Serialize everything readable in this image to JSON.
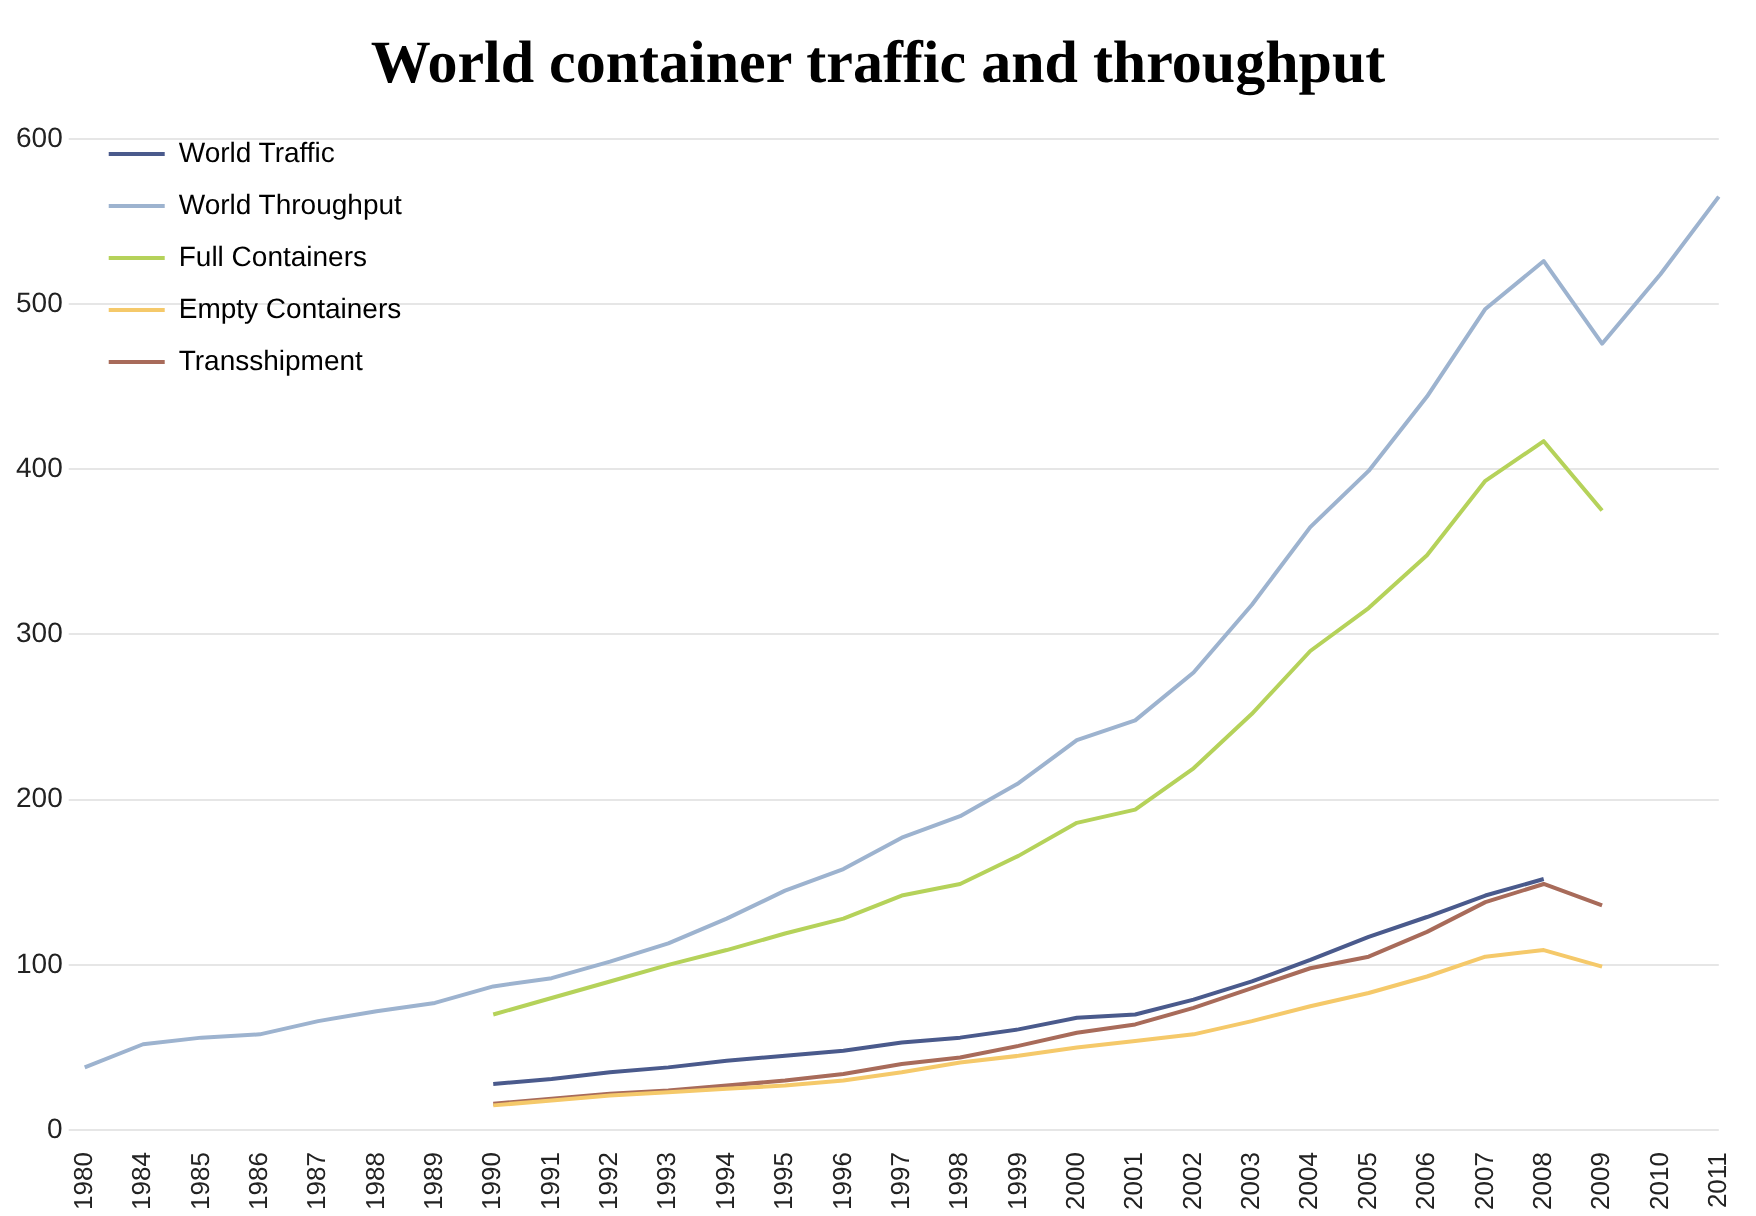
{
  "chart_data": {
    "type": "line",
    "title": "World container traffic and throughput",
    "categories": [
      "1980",
      "1984",
      "1985",
      "1986",
      "1987",
      "1988",
      "1989",
      "1990",
      "1991",
      "1992",
      "1993",
      "1994",
      "1995",
      "1996",
      "1997",
      "1998",
      "1999",
      "2000",
      "2001",
      "2002",
      "2003",
      "2004",
      "2005",
      "2006",
      "2007",
      "2008",
      "2009",
      "2010",
      "2011"
    ],
    "series": [
      {
        "name": "World Traffic",
        "color": "#4a5a8c",
        "values": [
          null,
          null,
          null,
          null,
          null,
          null,
          null,
          28,
          31,
          35,
          38,
          42,
          45,
          48,
          53,
          56,
          61,
          68,
          70,
          79,
          90,
          103,
          117,
          129,
          142,
          152,
          null,
          null,
          null
        ]
      },
      {
        "name": "World Throughput",
        "color": "#9db3cf",
        "values": [
          38,
          52,
          56,
          58,
          66,
          72,
          77,
          87,
          92,
          102,
          113,
          128,
          145,
          158,
          177,
          190,
          210,
          236,
          248,
          277,
          318,
          365,
          399,
          444,
          497,
          526,
          476,
          518,
          565
        ]
      },
      {
        "name": "Full Containers",
        "color": "#b5d25a",
        "values": [
          null,
          null,
          null,
          null,
          null,
          null,
          null,
          70,
          80,
          90,
          100,
          109,
          119,
          128,
          142,
          149,
          166,
          186,
          194,
          219,
          252,
          290,
          316,
          348,
          393,
          417,
          375,
          null,
          null
        ]
      },
      {
        "name": "Empty Containers",
        "color": "#f5c96a",
        "values": [
          null,
          null,
          null,
          null,
          null,
          null,
          null,
          15,
          18,
          21,
          23,
          25,
          27,
          30,
          35,
          41,
          45,
          50,
          54,
          58,
          66,
          75,
          83,
          93,
          105,
          109,
          99,
          null,
          null
        ]
      },
      {
        "name": "Transshipment",
        "color": "#a86b5a",
        "values": [
          null,
          null,
          null,
          null,
          null,
          null,
          null,
          16,
          19,
          22,
          24,
          27,
          30,
          34,
          40,
          44,
          51,
          59,
          64,
          74,
          86,
          98,
          105,
          120,
          138,
          149,
          136,
          null,
          null
        ]
      }
    ],
    "ylim": [
      0,
      600
    ],
    "yticks": [
      0,
      100,
      200,
      300,
      400,
      500,
      600
    ],
    "grid": "y",
    "legend": "top left",
    "marker": "none",
    "line_style": "solid"
  }
}
